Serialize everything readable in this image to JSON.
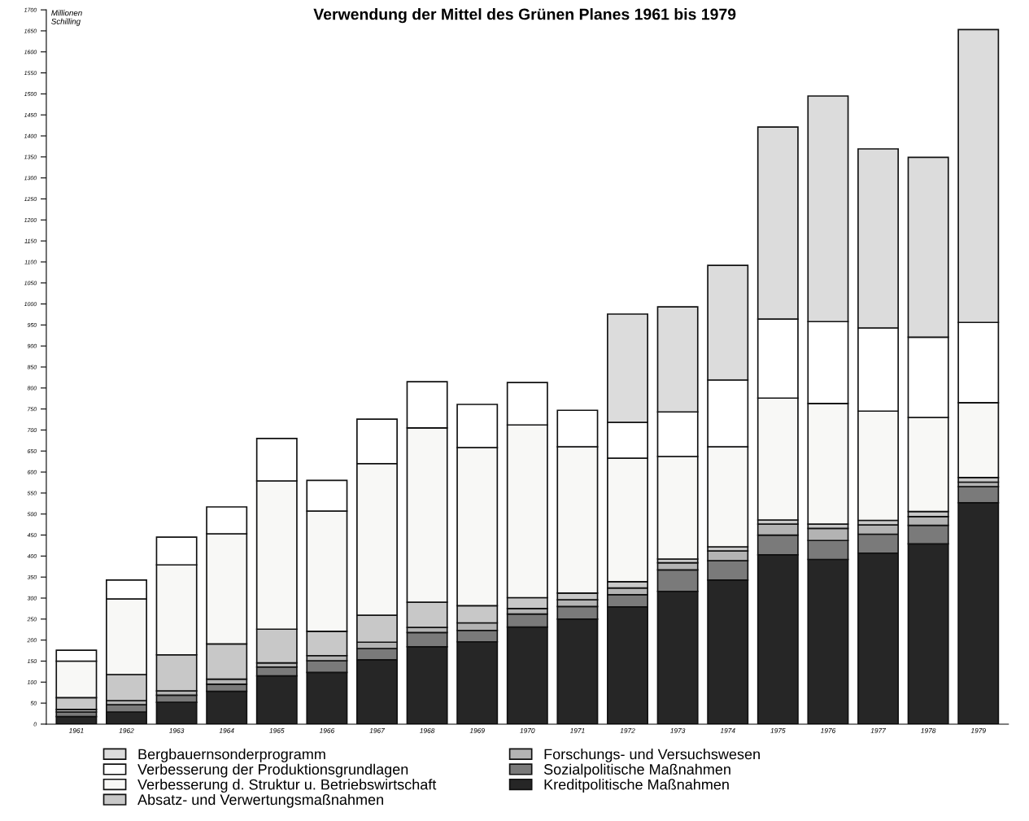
{
  "chart_data": {
    "type": "bar",
    "stacked": true,
    "title": "Verwendung der Mittel des Grünen Planes 1961 bis 1979",
    "ylabel": "Millionen\nSchilling",
    "categories": [
      "1961",
      "1962",
      "1963",
      "1964",
      "1965",
      "1966",
      "1967",
      "1968",
      "1969",
      "1970",
      "1971",
      "1972",
      "1973",
      "1974",
      "1975",
      "1976",
      "1977",
      "1978",
      "1979"
    ],
    "series": [
      {
        "name": "Kreditpolitische Maßnahmen",
        "color": "#262626",
        "values": [
          18,
          29,
          52,
          78,
          115,
          123,
          153,
          184,
          196,
          231,
          250,
          279,
          316,
          343,
          403,
          392,
          407,
          429,
          527
        ]
      },
      {
        "name": "Sozialpolitische Maßnahmen",
        "color": "#7a7a7a",
        "values": [
          11,
          17,
          17,
          17,
          21,
          28,
          27,
          34,
          27,
          31,
          30,
          29,
          51,
          46,
          47,
          45,
          45,
          44,
          38
        ]
      },
      {
        "name": "Forschungs- und Versuchswesen",
        "color": "#b3b3b3",
        "values": [
          6,
          10,
          10,
          12,
          10,
          12,
          15,
          12,
          18,
          13,
          16,
          16,
          17,
          23,
          26,
          29,
          22,
          21,
          11
        ]
      },
      {
        "name": "Absatz- und Verwertungsmaßnahmen",
        "color": "#c8c8c8",
        "values": [
          28,
          62,
          86,
          84,
          80,
          58,
          64,
          60,
          41,
          26,
          16,
          15,
          9,
          10,
          10,
          10,
          11,
          12,
          11
        ]
      },
      {
        "name": "Verbesserung d. Struktur u. Betriebswirtschaft",
        "color": "#f8f8f6",
        "values": [
          87,
          180,
          214,
          262,
          353,
          286,
          361,
          415,
          376,
          411,
          348,
          294,
          244,
          238,
          290,
          287,
          260,
          224,
          178
        ]
      },
      {
        "name": "Verbesserung der Produktionsgrundlagen",
        "color": "#ffffff",
        "values": [
          26,
          45,
          66,
          64,
          101,
          73,
          106,
          110,
          103,
          101,
          87,
          85,
          106,
          159,
          188,
          195,
          198,
          191,
          191
        ]
      },
      {
        "name": "Bergbauernsonderprogramm",
        "color": "#dcdcdc",
        "values": [
          null,
          null,
          null,
          null,
          null,
          null,
          null,
          null,
          null,
          null,
          null,
          258,
          250,
          273,
          457,
          537,
          426,
          428,
          697
        ]
      }
    ],
    "ylim": [
      0,
      1700
    ],
    "yticks": [
      0,
      50,
      100,
      150,
      200,
      250,
      300,
      350,
      400,
      450,
      500,
      550,
      600,
      650,
      700,
      750,
      800,
      850,
      900,
      950,
      1000,
      1050,
      1100,
      1150,
      1200,
      1250,
      1300,
      1350,
      1400,
      1450,
      1500,
      1550,
      1600,
      1650,
      1700
    ],
    "grid": false,
    "legend": "bottom"
  }
}
